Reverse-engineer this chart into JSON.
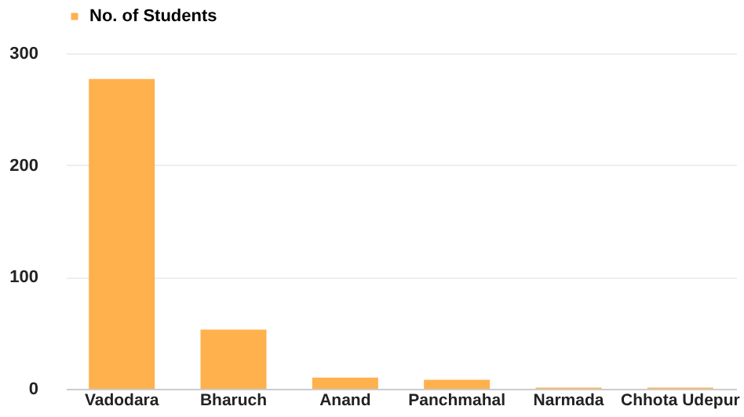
{
  "chart_data": {
    "type": "bar",
    "categories": [
      "Vadodara",
      "Bharuch",
      "Anand",
      "Panchmahal",
      "Narmada",
      "Chhota Udepur"
    ],
    "series": [
      {
        "name": "No. of Students",
        "color": "#ffb14e",
        "values": [
          277,
          53,
          10,
          8,
          1,
          1
        ]
      }
    ],
    "ylim": [
      0,
      300
    ],
    "yticks": [
      0,
      100,
      200,
      300
    ],
    "grid": "y",
    "legend": "top"
  }
}
